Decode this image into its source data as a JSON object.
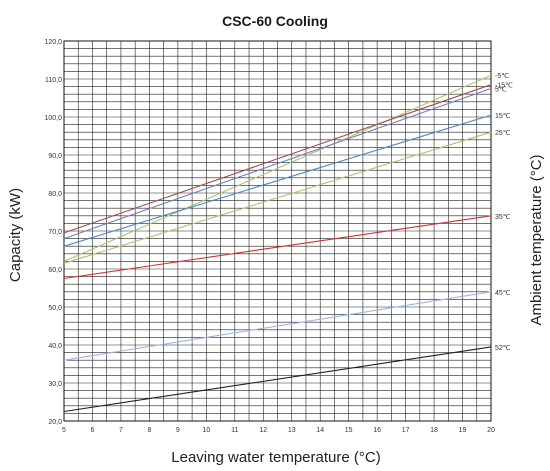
{
  "chart_data": {
    "type": "line",
    "title": "CSC-60 Cooling",
    "xlabel": "Leaving water temperature (°C)",
    "ylabel": "Capacity (kW)",
    "y2label": "Ambient temperature (°C)",
    "xlim": [
      5,
      20
    ],
    "ylim": [
      20,
      120
    ],
    "x_ticks": [
      5,
      6,
      7,
      8,
      9,
      10,
      11,
      12,
      13,
      14,
      15,
      16,
      17,
      18,
      19,
      20
    ],
    "y_ticks": [
      "20,0",
      "30,0",
      "40,0",
      "50,0",
      "60,0",
      "70,0",
      "80,0",
      "90,0",
      "100,0",
      "110,0",
      "120,0"
    ],
    "grid": true,
    "x": [
      5,
      20
    ],
    "series": [
      {
        "name": "-5℃",
        "color": "#b0c070",
        "values": [
          62.0,
          111.0
        ]
      },
      {
        "name": "-15℃",
        "color": "#a05050",
        "values": [
          69.5,
          108.5
        ]
      },
      {
        "name": "5℃",
        "color": "#6a80c0",
        "values": [
          68.0,
          107.5
        ]
      },
      {
        "name": "15℃",
        "color": "#4a88c8",
        "values": [
          66.0,
          100.5
        ]
      },
      {
        "name": "25℃",
        "color": "#b0c070",
        "values": [
          61.5,
          96.0
        ]
      },
      {
        "name": "35℃",
        "color": "#cc3333",
        "values": [
          57.5,
          74.0
        ]
      },
      {
        "name": "45℃",
        "color": "#9ab8e0",
        "values": [
          36.0,
          54.0
        ]
      },
      {
        "name": "52℃",
        "color": "#222222",
        "values": [
          22.5,
          39.5
        ]
      }
    ]
  }
}
